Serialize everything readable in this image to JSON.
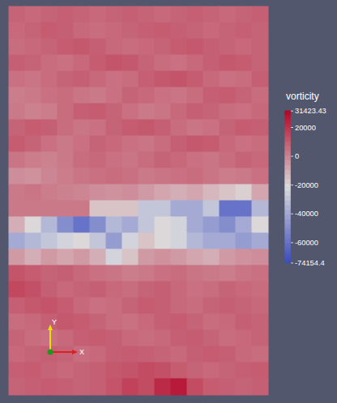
{
  "chart_data": {
    "type": "heatmap",
    "tick_labels": false,
    "cells": [
      [
        8000,
        7000,
        8000,
        9000,
        8000,
        7000,
        8000,
        9000,
        8000,
        7000,
        8000,
        9000,
        8000,
        7000,
        8000,
        9000
      ],
      [
        7000,
        8000,
        10000,
        9000,
        7000,
        6000,
        7000,
        8000,
        9000,
        10000,
        9000,
        8000,
        7000,
        8000,
        9000,
        8000
      ],
      [
        6000,
        7000,
        8000,
        10000,
        11000,
        9000,
        7000,
        6000,
        7000,
        8000,
        10000,
        11000,
        9000,
        8000,
        7000,
        8000
      ],
      [
        9000,
        8000,
        6000,
        5000,
        7000,
        10000,
        12000,
        11000,
        8000,
        6000,
        5000,
        7000,
        9000,
        11000,
        10000,
        8000
      ],
      [
        5000,
        4000,
        6000,
        8000,
        9000,
        7000,
        5000,
        6000,
        9000,
        11000,
        12000,
        10000,
        7000,
        5000,
        6000,
        9000
      ],
      [
        2000,
        3000,
        5000,
        6000,
        4000,
        3000,
        5000,
        8000,
        7000,
        5000,
        4000,
        6000,
        9000,
        10000,
        8000,
        6000
      ],
      [
        3000,
        1000,
        2000,
        6000,
        9000,
        10000,
        8000,
        5000,
        3000,
        4000,
        7000,
        9000,
        8000,
        6000,
        5000,
        7000
      ],
      [
        8000,
        10000,
        9000,
        6000,
        4000,
        5000,
        8000,
        10000,
        11000,
        9000,
        6000,
        4000,
        5000,
        8000,
        10000,
        9000
      ],
      [
        10000,
        8000,
        5000,
        3000,
        5000,
        8000,
        7000,
        5000,
        4000,
        6000,
        9000,
        11000,
        10000,
        7000,
        5000,
        6000
      ],
      [
        4000,
        2000,
        1000,
        3000,
        6000,
        7000,
        5000,
        4000,
        6000,
        8000,
        7000,
        5000,
        4000,
        6000,
        8000,
        7000
      ],
      [
        -2000,
        -3000,
        0,
        2000,
        4000,
        5000,
        6000,
        5000,
        3000,
        4000,
        5000,
        6000,
        4000,
        2000,
        3000,
        5000
      ],
      [
        3000,
        4000,
        2000,
        1000,
        0,
        -2000,
        -3000,
        -2000,
        -5000,
        -8000,
        -10000,
        -8000,
        -12000,
        -15000,
        -18000,
        -8000
      ],
      [
        3000,
        3000,
        3000,
        3000,
        3000,
        -15000,
        -15000,
        -15000,
        -30000,
        -30000,
        -40000,
        -40000,
        -30000,
        -60000,
        -60000,
        -35000
      ],
      [
        -10000,
        -20000,
        -35000,
        -50000,
        -60000,
        -50000,
        -35000,
        -40000,
        -30000,
        -20000,
        -25000,
        -40000,
        -45000,
        -50000,
        -40000,
        -20000
      ],
      [
        -40000,
        -35000,
        -30000,
        -25000,
        -20000,
        -30000,
        -45000,
        -25000,
        -15000,
        -20000,
        -25000,
        -35000,
        -40000,
        -40000,
        -45000,
        -40000
      ],
      [
        -5000,
        -10000,
        -5000,
        -8000,
        -5000,
        -10000,
        -25000,
        -15000,
        -5000,
        -3000,
        -5000,
        -8000,
        -10000,
        -5000,
        -3000,
        -2000
      ],
      [
        12000,
        10000,
        8000,
        9000,
        7000,
        5000,
        4000,
        2000,
        3000,
        5000,
        6000,
        4000,
        3000,
        2000,
        4000,
        5000
      ],
      [
        15000,
        13000,
        9000,
        7000,
        8000,
        9000,
        7000,
        6000,
        8000,
        9000,
        7000,
        5000,
        6000,
        8000,
        7000,
        6000
      ],
      [
        9000,
        11000,
        12000,
        10000,
        7000,
        5000,
        6000,
        8000,
        10000,
        9000,
        7000,
        6000,
        8000,
        9000,
        8000,
        7000
      ],
      [
        6000,
        7000,
        9000,
        11000,
        10000,
        8000,
        6000,
        5000,
        7000,
        9000,
        10000,
        8000,
        6000,
        7000,
        9000,
        8000
      ],
      [
        8000,
        6000,
        5000,
        7000,
        9000,
        10000,
        9000,
        7000,
        6000,
        7000,
        9000,
        10000,
        8000,
        6000,
        7000,
        8000
      ],
      [
        7000,
        8000,
        9000,
        8000,
        6000,
        7000,
        9000,
        10000,
        9000,
        8000,
        7000,
        9000,
        10000,
        9000,
        7000,
        6000
      ],
      [
        9000,
        10000,
        8000,
        7000,
        8000,
        9000,
        11000,
        12000,
        14000,
        13000,
        10000,
        8000,
        7000,
        8000,
        9000,
        10000
      ],
      [
        8000,
        9000,
        10000,
        9000,
        8000,
        9000,
        12000,
        16000,
        14000,
        22000,
        26000,
        14000,
        10000,
        9000,
        8000,
        9000
      ]
    ],
    "colorbar": {
      "label": "vorticity",
      "range": [
        -74154.4,
        31423.43
      ],
      "ticks": [
        -74154.4,
        -60000,
        -40000,
        -20000,
        0,
        20000,
        31423.43
      ]
    },
    "axes_triad_labels": [
      "X",
      "Y"
    ]
  }
}
